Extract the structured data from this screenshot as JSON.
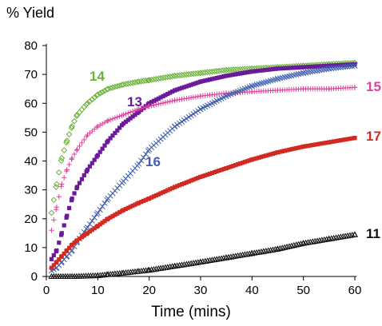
{
  "chart_data": {
    "type": "scatter",
    "title": "",
    "ylabel": "% Yield",
    "xlabel": "Time (mins)",
    "xlim": [
      0,
      60
    ],
    "ylim": [
      0,
      80
    ],
    "xticks": [
      0,
      10,
      20,
      30,
      40,
      50,
      60
    ],
    "yticks": [
      0,
      10,
      20,
      30,
      40,
      50,
      60,
      70,
      80
    ],
    "grid": false,
    "legend": "inline labels",
    "series": [
      {
        "name": "14",
        "color": "#6ab23a",
        "marker": "diamond-open",
        "x": [
          1,
          2,
          3,
          4,
          5,
          6,
          8,
          10,
          12,
          15,
          18,
          20,
          25,
          30,
          35,
          40,
          45,
          50,
          55,
          60
        ],
        "y": [
          22,
          32,
          41,
          47,
          52,
          56,
          60,
          63,
          65,
          66.5,
          67.5,
          68,
          69.5,
          70.5,
          71.5,
          72,
          72.5,
          73,
          73.5,
          74
        ]
      },
      {
        "name": "13",
        "color": "#6a1b9a",
        "marker": "square-filled",
        "x": [
          1,
          2,
          3,
          4,
          5,
          6,
          8,
          10,
          12,
          15,
          18,
          20,
          25,
          30,
          35,
          40,
          45,
          50,
          55,
          60
        ],
        "y": [
          6,
          9,
          15,
          21,
          27,
          31,
          37,
          42,
          47,
          53,
          57,
          60,
          64.5,
          67.5,
          69.5,
          71,
          72,
          72.5,
          73,
          73.5
        ]
      },
      {
        "name": "15",
        "color": "#e0429a",
        "marker": "plus",
        "x": [
          1,
          2,
          3,
          4,
          5,
          6,
          8,
          10,
          12,
          15,
          18,
          20,
          25,
          30,
          35,
          40,
          45,
          50,
          55,
          60
        ],
        "y": [
          16,
          24,
          32,
          37,
          41,
          44,
          49,
          52,
          54,
          56,
          58,
          59,
          61,
          62.5,
          63.5,
          64,
          64.5,
          65,
          65,
          65.5
        ]
      },
      {
        "name": "16",
        "color": "#3f5fae",
        "marker": "x",
        "x": [
          1,
          2,
          3,
          4,
          5,
          6,
          8,
          10,
          12,
          15,
          18,
          20,
          25,
          30,
          35,
          40,
          45,
          50,
          55,
          60
        ],
        "y": [
          2,
          3,
          5,
          7,
          9,
          12,
          17,
          22,
          27,
          33,
          39,
          44,
          52,
          58,
          62.5,
          66,
          68.5,
          70.5,
          72,
          73
        ]
      },
      {
        "name": "17",
        "color": "#d12a22",
        "marker": "square-filled",
        "x": [
          1,
          2,
          3,
          4,
          5,
          6,
          8,
          10,
          12,
          15,
          18,
          20,
          25,
          30,
          35,
          40,
          45,
          50,
          55,
          60
        ],
        "y": [
          3,
          5,
          7,
          9,
          11,
          12.5,
          15,
          17.5,
          20,
          23,
          25.5,
          27,
          31,
          34.5,
          37.5,
          40.5,
          43,
          45,
          46.5,
          48
        ]
      },
      {
        "name": "11",
        "color": "#111111",
        "marker": "triangle-open",
        "x": [
          1,
          5,
          10,
          12,
          15,
          18,
          20,
          25,
          30,
          35,
          40,
          45,
          50,
          55,
          60
        ],
        "y": [
          0,
          0,
          0.3,
          0.7,
          1.2,
          1.8,
          2.2,
          3.6,
          5,
          6.5,
          8,
          9.5,
          11.5,
          13,
          14.5
        ]
      }
    ],
    "label_colors": {
      "14": "#6ab23a",
      "13": "#6a1b9a",
      "15": "#e0429a",
      "16": "#3f5fae",
      "17": "#d12a22",
      "11": "#111111"
    }
  }
}
